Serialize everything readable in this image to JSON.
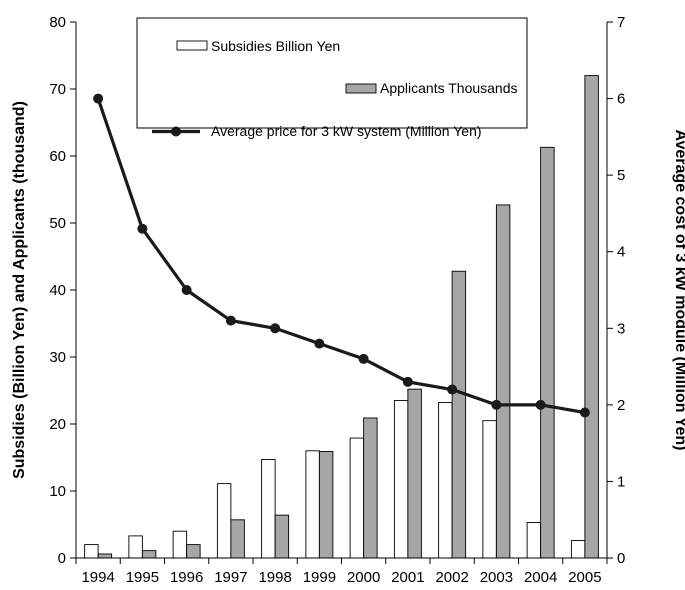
{
  "chart_data": {
    "type": "bar",
    "categories": [
      "1994",
      "1995",
      "1996",
      "1997",
      "1998",
      "1999",
      "2000",
      "2001",
      "2002",
      "2003",
      "2004",
      "2005"
    ],
    "series": [
      {
        "name": "Subsidies Billion Yen",
        "kind": "bar",
        "axis": "left",
        "color": "#ffffff",
        "values": [
          2.0,
          3.3,
          4.0,
          11.1,
          14.7,
          16.0,
          17.9,
          23.5,
          23.2,
          20.5,
          5.3,
          2.6
        ]
      },
      {
        "name": "Applicants Thousands",
        "kind": "bar",
        "axis": "left",
        "color": "#a6a6a6",
        "values": [
          0.6,
          1.1,
          2.0,
          5.7,
          6.4,
          15.9,
          20.9,
          25.2,
          42.8,
          52.7,
          61.3,
          72.0
        ]
      },
      {
        "name": "Average price for 3 kW system (Million Yen)",
        "kind": "line",
        "axis": "right",
        "color": "#1a1a1a",
        "values": [
          6.0,
          4.3,
          3.5,
          3.1,
          3.0,
          2.8,
          2.6,
          2.3,
          2.2,
          2.0,
          2.0,
          1.9
        ]
      }
    ],
    "ylabel_left": "Subsidies (Billion Yen) and Applicants (thousand)",
    "ylabel_right": "Average cost of 3 kW module (Million Yen)",
    "ylim_left": [
      0,
      80
    ],
    "ylim_right": [
      0,
      7
    ],
    "yticks_left": [
      "0",
      "10",
      "20",
      "30",
      "40",
      "50",
      "60",
      "70",
      "80"
    ],
    "yticks_right": [
      "0",
      "1",
      "2",
      "3",
      "4",
      "5",
      "6",
      "7"
    ],
    "grid": false,
    "legend_position": "top-center"
  }
}
